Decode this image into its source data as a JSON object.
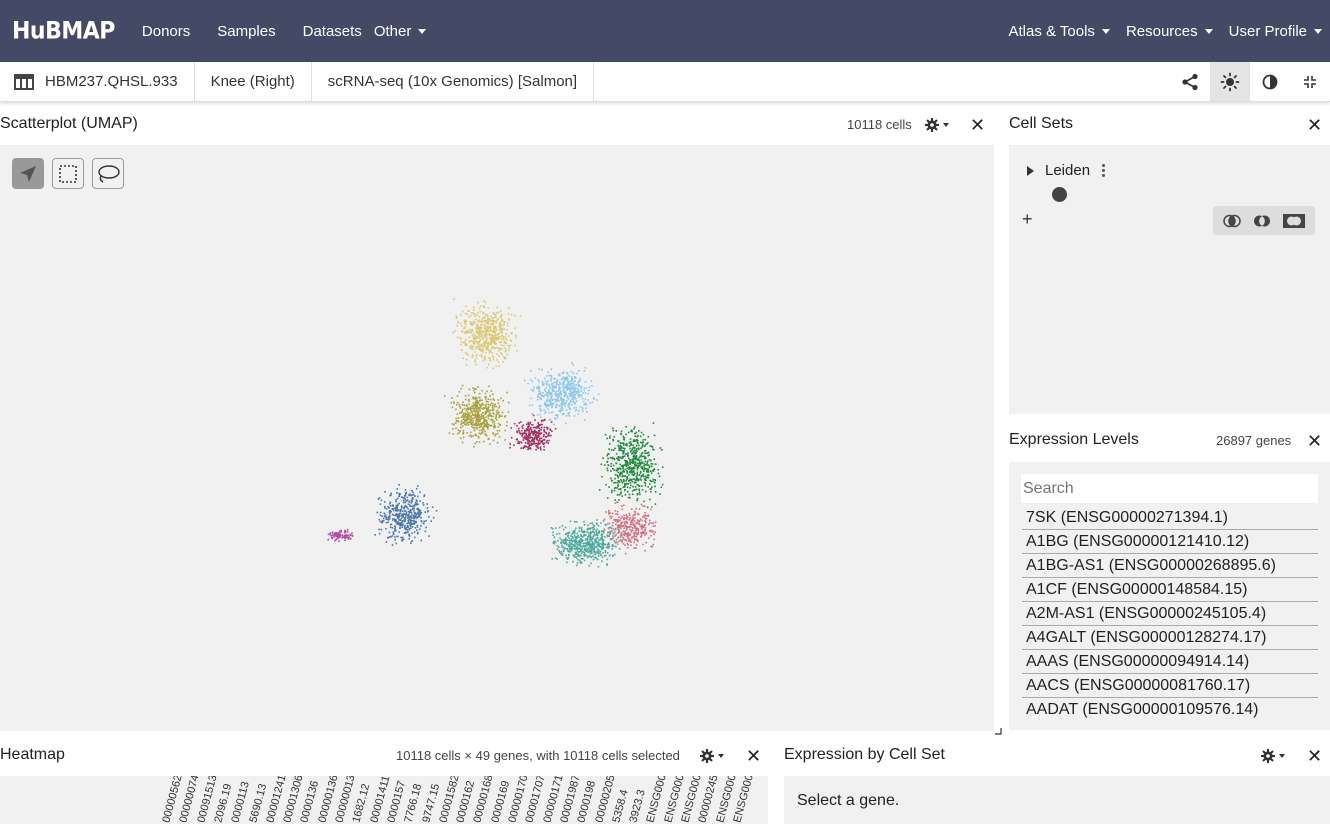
{
  "nav": {
    "logo": "HuBMAP",
    "links": [
      "Donors",
      "Samples",
      "Datasets"
    ],
    "other": "Other",
    "right": [
      "Atlas & Tools",
      "Resources",
      "User Profile"
    ]
  },
  "subheader": {
    "dataset_id": "HBM237.QHSL.933",
    "organ": "Knee (Right)",
    "assay": "scRNA-seq (10x Genomics) [Salmon]"
  },
  "scatterplot": {
    "title": "Scatterplot (UMAP)",
    "cell_count": "10118 cells"
  },
  "cell_sets": {
    "title": "Cell Sets",
    "hierarchy": "Leiden",
    "add": "+"
  },
  "expression_levels": {
    "title": "Expression Levels",
    "gene_count": "26897 genes",
    "search_placeholder": "Search",
    "genes": [
      "7SK (ENSG00000271394.1)",
      "A1BG (ENSG00000121410.12)",
      "A1BG-AS1 (ENSG00000268895.6)",
      "A1CF (ENSG00000148584.15)",
      "A2M-AS1 (ENSG00000245105.4)",
      "A4GALT (ENSG00000128274.17)",
      "AAAS (ENSG00000094914.14)",
      "AACS (ENSG00000081760.17)",
      "AADAT (ENSG00000109576.14)"
    ]
  },
  "heatmap": {
    "title": "Heatmap",
    "summary": "10118 cells × 49 genes, with 10118 cells selected",
    "column_labels": [
      "00000562",
      "00000074",
      "00091513.1",
      "2096.19",
      "0000113",
      "5690.13",
      "00001241",
      "000013060",
      "0000136",
      "00000136",
      "00000013",
      "1682.12",
      "00001411",
      "0000157",
      "7766.18",
      "9747.15",
      "000015822",
      "0000162",
      "00000168",
      "0000169",
      "00000170",
      "00001707",
      "00000171",
      "00001987",
      "0000198",
      "00000205",
      "5358.4",
      "3923.3",
      "ENSG0000",
      "ENSG0000",
      "ENSG00002",
      "00000245",
      "ENSG0000",
      "ENSG00002"
    ]
  },
  "expression_by_cell_set": {
    "title": "Expression by Cell Set",
    "message": "Select a gene."
  },
  "colors": {
    "nav_bg": "#444a65",
    "panel_bg": "#f1f1f1"
  }
}
